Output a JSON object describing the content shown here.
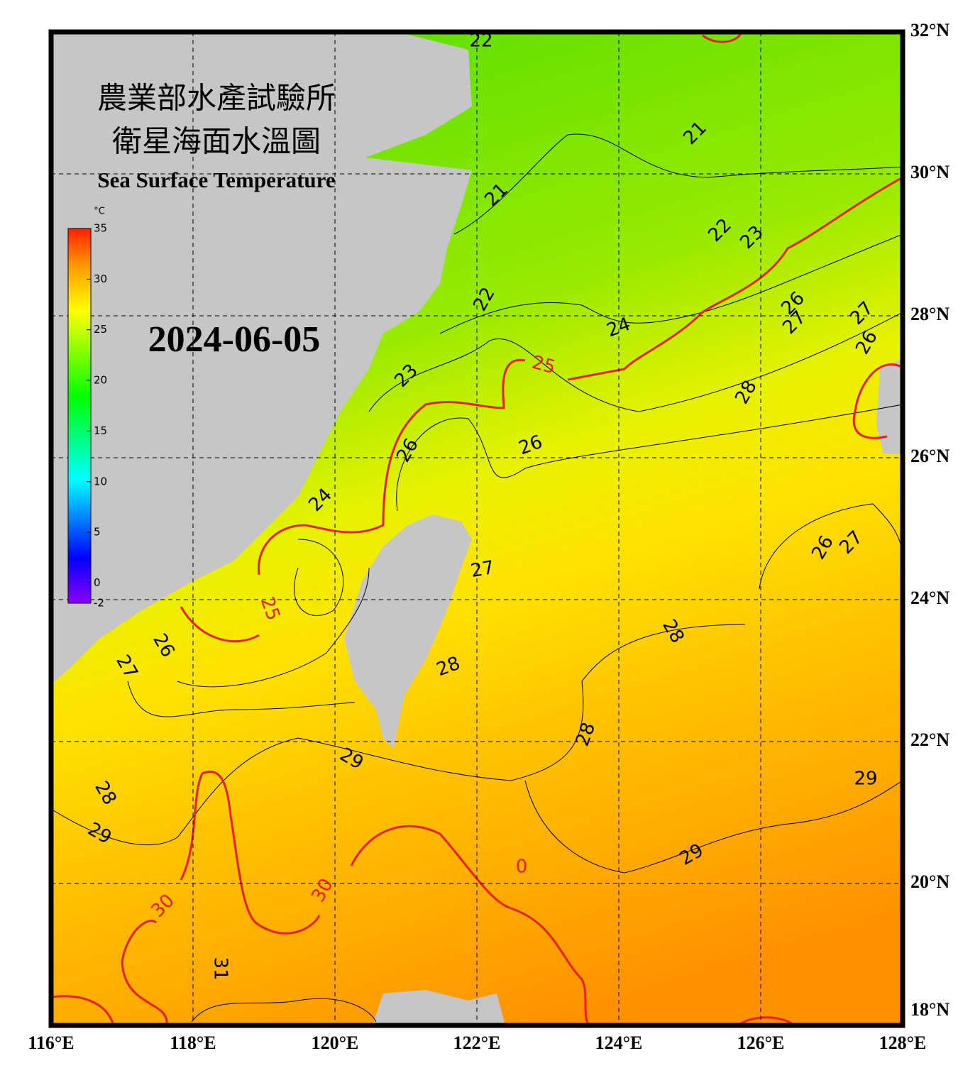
{
  "title_zh_1": "農業部水產試驗所",
  "title_zh_2": "衛星海面水溫圖",
  "title_en": "Sea Surface Temperature",
  "date": "2024-06-05",
  "colorbar": {
    "unit": "°C",
    "range": [
      -2,
      35
    ],
    "ticks": [
      35,
      30,
      25,
      20,
      15,
      10,
      5,
      0,
      -2
    ]
  },
  "map": {
    "xlim": [
      116,
      128
    ],
    "ylim": [
      18,
      32
    ],
    "xticks": [
      {
        "value": 116,
        "label": "116°E"
      },
      {
        "value": 118,
        "label": "118°E"
      },
      {
        "value": 120,
        "label": "120°E"
      },
      {
        "value": 122,
        "label": "122°E"
      },
      {
        "value": 124,
        "label": "124°E"
      },
      {
        "value": 126,
        "label": "126°E"
      },
      {
        "value": 128,
        "label": "128°E"
      }
    ],
    "yticks": [
      {
        "value": 18,
        "label": "18°N"
      },
      {
        "value": 20,
        "label": "20°N"
      },
      {
        "value": 22,
        "label": "22°N"
      },
      {
        "value": 24,
        "label": "24°N"
      },
      {
        "value": 26,
        "label": "26°N"
      },
      {
        "value": 28,
        "label": "28°N"
      },
      {
        "value": 30,
        "label": "30°N"
      },
      {
        "value": 32,
        "label": "32°N"
      }
    ],
    "grid": true
  },
  "contour_labels": [
    22,
    21,
    21,
    22,
    23,
    22,
    24,
    25,
    26,
    27,
    27,
    26,
    23,
    28,
    26,
    26,
    24,
    26,
    27,
    27,
    25,
    28,
    26,
    27,
    28,
    28,
    29,
    28,
    29,
    29,
    29,
    30,
    30,
    0,
    31
  ]
}
